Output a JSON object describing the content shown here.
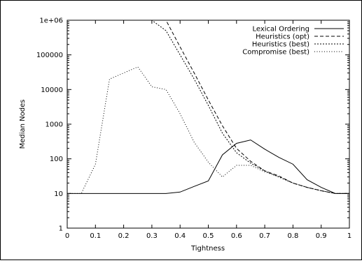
{
  "chart_data": {
    "type": "line",
    "title": "",
    "xlabel": "Tightness",
    "ylabel": "Median Nodes",
    "xlim": [
      0,
      1
    ],
    "ylim": [
      1,
      1000000
    ],
    "yscale": "log",
    "x_ticks": [
      "0",
      "0.1",
      "0.2",
      "0.3",
      "0.4",
      "0.5",
      "0.6",
      "0.7",
      "0.8",
      "0.9",
      "1"
    ],
    "y_ticks": [
      "1",
      "10",
      "100",
      "1000",
      "10000",
      "100000",
      "1e+06"
    ],
    "legend_position": "top-right",
    "grid": false,
    "x": [
      0,
      0.05,
      0.1,
      0.15,
      0.2,
      0.25,
      0.3,
      0.35,
      0.4,
      0.45,
      0.5,
      0.55,
      0.6,
      0.65,
      0.7,
      0.75,
      0.8,
      0.85,
      0.9,
      0.95,
      1
    ],
    "series": [
      {
        "name": "Lexical Ordering",
        "dash": "solid",
        "values": [
          10,
          10,
          10,
          10,
          10,
          10,
          10,
          10,
          11,
          16,
          23,
          130,
          280,
          350,
          190,
          110,
          70,
          25,
          15,
          10,
          10
        ]
      },
      {
        "name": "Heuristics (opt)",
        "dash": "dashed",
        "values": [
          1000000,
          1000000,
          1000000,
          1000000,
          1000000,
          1000000,
          1000000,
          1000000,
          170000,
          30000,
          5000,
          900,
          200,
          85,
          45,
          32,
          20,
          15,
          12,
          10,
          10
        ]
      },
      {
        "name": "Heuristics (best)",
        "dash": "dotted",
        "values": [
          1000000,
          1000000,
          1000000,
          1000000,
          1000000,
          1000000,
          1000000,
          500000,
          100000,
          20000,
          3500,
          550,
          150,
          75,
          45,
          30,
          20,
          15,
          12,
          10,
          10
        ]
      },
      {
        "name": "Compromise (best)",
        "dash": "sparse-dotted",
        "values": [
          10,
          10,
          70,
          20000,
          30000,
          45000,
          12000,
          10000,
          2000,
          300,
          80,
          30,
          65,
          65,
          42,
          30,
          20,
          15,
          12,
          10,
          10
        ]
      }
    ]
  }
}
